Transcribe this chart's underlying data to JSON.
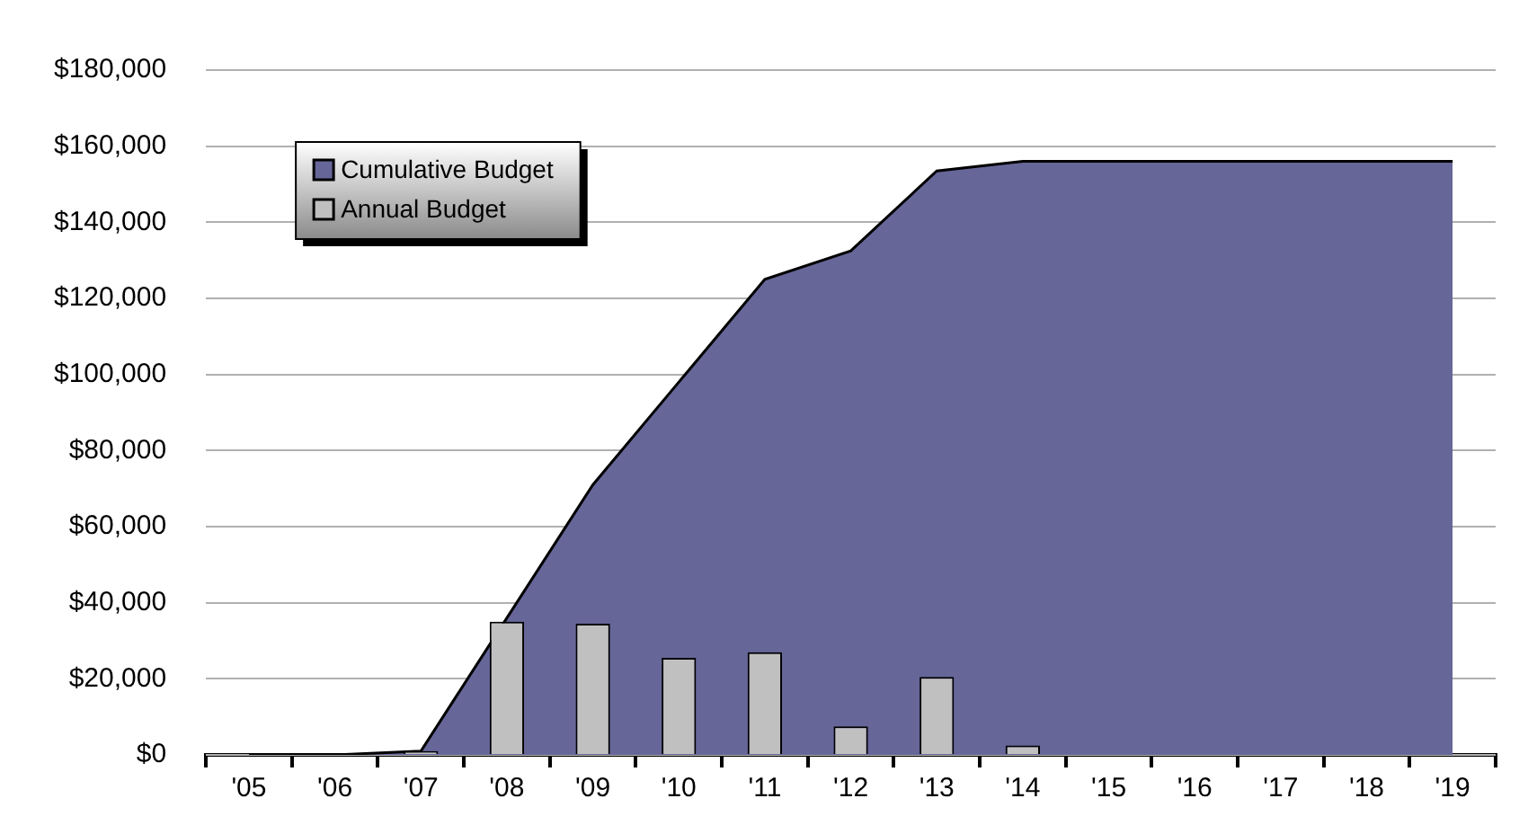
{
  "chart_data": {
    "type": "bar",
    "categories": [
      "'05",
      "'06",
      "'07",
      "'08",
      "'09",
      "'10",
      "'11",
      "'12",
      "'13",
      "'14",
      "'15",
      "'16",
      "'17",
      "'18",
      "'19"
    ],
    "series": [
      {
        "name": "Cumulative Budget",
        "type": "area",
        "color": "#666699",
        "values": [
          0,
          0,
          1000,
          36000,
          71000,
          98000,
          125000,
          132500,
          153500,
          156000,
          156000,
          156000,
          156000,
          156000,
          156000
        ]
      },
      {
        "name": "Annual Budget",
        "type": "bar",
        "color": "#c0c0c0",
        "values": [
          0,
          0,
          1000,
          35000,
          34500,
          25500,
          27000,
          7500,
          20500,
          2500,
          0,
          0,
          0,
          0,
          0
        ]
      }
    ],
    "ylim": [
      0,
      180000
    ],
    "yticks": [
      {
        "value": 0,
        "label": "$0"
      },
      {
        "value": 20000,
        "label": "$20,000"
      },
      {
        "value": 40000,
        "label": "$40,000"
      },
      {
        "value": 60000,
        "label": "$60,000"
      },
      {
        "value": 80000,
        "label": "$80,000"
      },
      {
        "value": 100000,
        "label": "$100,000"
      },
      {
        "value": 120000,
        "label": "$120,000"
      },
      {
        "value": 140000,
        "label": "$140,000"
      },
      {
        "value": 160000,
        "label": "$160,000"
      },
      {
        "value": 180000,
        "label": "$180,000"
      }
    ],
    "grid": "y",
    "legend": "top left"
  }
}
